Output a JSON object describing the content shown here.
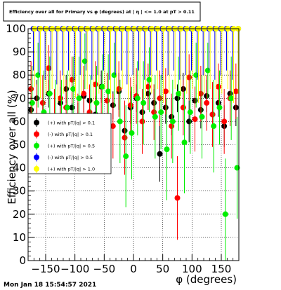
{
  "chart_data": {
    "type": "scatter",
    "title": "Efficiency over all for Primary  vs φ (degrees) at | η | <= 1.0 at pT > 0.11",
    "xlabel": "φ (degrees)",
    "ylabel": "Efficiency over all (%)",
    "xlim": [
      -180,
      180
    ],
    "ylim": [
      0,
      100
    ],
    "x_ticks": [
      -150,
      -100,
      -50,
      0,
      50,
      100,
      150
    ],
    "y_ticks": [
      0,
      10,
      20,
      30,
      40,
      50,
      60,
      70,
      80,
      90,
      100
    ],
    "grid": true,
    "legend_position": "left-middle",
    "timestamp": "Mon Jan 18 15:54:57 2021",
    "series": [
      {
        "name": "(+) with pT/|q| > 0.1",
        "color": "#000000",
        "x": [
          -175,
          -165,
          -155,
          -145,
          -135,
          -125,
          -115,
          -105,
          -95,
          -85,
          -75,
          -65,
          -55,
          -45,
          -35,
          -25,
          -15,
          -5,
          5,
          15,
          25,
          35,
          45,
          55,
          65,
          75,
          85,
          95,
          105,
          115,
          125,
          135,
          145,
          155,
          165,
          175
        ],
        "y": [
          65,
          70,
          62,
          72,
          60,
          68,
          74,
          66,
          58,
          71,
          69,
          63,
          75,
          61,
          67,
          73,
          56,
          66,
          70,
          64,
          72,
          68,
          46,
          66,
          62,
          70,
          74,
          60,
          69,
          65,
          71,
          63,
          68,
          58,
          72,
          66
        ],
        "err": [
          6,
          8,
          7,
          6,
          9,
          7,
          6,
          8,
          10,
          7,
          6,
          8,
          7,
          9,
          6,
          8,
          10,
          7,
          6,
          8,
          7,
          6,
          12,
          7,
          8,
          6,
          7,
          9,
          6,
          8,
          7,
          8,
          6,
          9,
          7,
          8
        ]
      },
      {
        "name": "(-) with pT/|q| > 0.1",
        "color": "#ff0000",
        "x": [
          -175,
          -165,
          -155,
          -145,
          -135,
          -125,
          -115,
          -105,
          -95,
          -85,
          -75,
          -65,
          -55,
          -45,
          -35,
          -25,
          -15,
          -5,
          5,
          15,
          25,
          35,
          45,
          55,
          65,
          75,
          85,
          95,
          105,
          115,
          125,
          135,
          145,
          155,
          165,
          175
        ],
        "y": [
          74,
          62,
          68,
          83,
          60,
          70,
          66,
          78,
          58,
          72,
          64,
          76,
          62,
          69,
          58,
          74,
          53,
          67,
          71,
          60,
          75,
          64,
          70,
          73,
          58,
          27,
          66,
          79,
          61,
          72,
          68,
          63,
          75,
          60,
          70,
          73
        ],
        "err": [
          12,
          14,
          12,
          10,
          14,
          12,
          12,
          10,
          14,
          12,
          12,
          10,
          14,
          12,
          14,
          12,
          16,
          12,
          12,
          14,
          10,
          12,
          12,
          10,
          14,
          18,
          12,
          10,
          14,
          12,
          12,
          14,
          10,
          14,
          12,
          12
        ]
      },
      {
        "name": "(+) with pT/|q| > 0.5",
        "color": "#00ee00",
        "x": [
          -173,
          -163,
          -153,
          -143,
          -133,
          -123,
          -113,
          -103,
          -93,
          -83,
          -73,
          -63,
          -53,
          -43,
          -33,
          -23,
          -13,
          -3,
          7,
          17,
          27,
          37,
          47,
          57,
          67,
          77,
          87,
          97,
          107,
          117,
          127,
          137,
          147,
          157,
          167,
          177
        ],
        "y": [
          68,
          80,
          64,
          72,
          58,
          60,
          66,
          74,
          70,
          86,
          62,
          68,
          75,
          73,
          80,
          60,
          45,
          55,
          70,
          68,
          78,
          62,
          64,
          48,
          60,
          72,
          51,
          64,
          80,
          62,
          82,
          58,
          66,
          20,
          70,
          40
        ],
        "err": [
          16,
          14,
          18,
          16,
          20,
          18,
          16,
          14,
          18,
          12,
          18,
          16,
          14,
          16,
          14,
          18,
          22,
          20,
          16,
          18,
          14,
          18,
          16,
          22,
          18,
          16,
          22,
          18,
          14,
          18,
          12,
          20,
          16,
          24,
          18,
          22
        ]
      },
      {
        "name": "(-) with pT/|q| > 0.5",
        "color": "#0000ff",
        "x": [
          -171,
          -161,
          -151,
          -141,
          -131,
          -121,
          -111,
          -101,
          -91,
          -81,
          -71,
          -61,
          -51,
          -41,
          -31,
          -21,
          -11,
          -1,
          9,
          19,
          29,
          39,
          49,
          59,
          69,
          79,
          89,
          99,
          109,
          119,
          129,
          139,
          149,
          159,
          169,
          179
        ],
        "y": [
          100,
          100,
          100,
          100,
          100,
          100,
          100,
          100,
          100,
          100,
          100,
          100,
          100,
          100,
          100,
          100,
          100,
          100,
          100,
          100,
          100,
          100,
          100,
          100,
          100,
          100,
          100,
          100,
          100,
          100,
          100,
          100,
          100,
          100,
          100,
          100
        ],
        "err": [
          18,
          20,
          22,
          18,
          24,
          20,
          18,
          22,
          20,
          18,
          22,
          20,
          18,
          22,
          20,
          18,
          24,
          20,
          18,
          22,
          20,
          18,
          22,
          20,
          18,
          22,
          20,
          18,
          22,
          20,
          18,
          22,
          20,
          18,
          22,
          20
        ]
      },
      {
        "name": "(+) with pT/|q| > 1.0",
        "color": "#ffff00",
        "x": [
          -169,
          -159,
          -149,
          -139,
          -129,
          -119,
          -109,
          -99,
          -89,
          -79,
          -69,
          -59,
          -49,
          -39,
          -29,
          -19,
          -9,
          1,
          11,
          21,
          31,
          41,
          51,
          61,
          71,
          81,
          91,
          101,
          111,
          121,
          131,
          141,
          151,
          161,
          171,
          179
        ],
        "y": [
          100,
          100,
          100,
          100,
          100,
          100,
          100,
          100,
          100,
          100,
          100,
          100,
          100,
          100,
          100,
          100,
          100,
          100,
          100,
          100,
          100,
          100,
          100,
          100,
          100,
          100,
          100,
          100,
          100,
          100,
          100,
          100,
          100,
          100,
          100,
          100
        ],
        "err": [
          25,
          30,
          28,
          26,
          32,
          28,
          26,
          30,
          28,
          26,
          32,
          28,
          26,
          30,
          28,
          26,
          32,
          28,
          26,
          30,
          28,
          26,
          32,
          28,
          26,
          30,
          28,
          26,
          32,
          28,
          26,
          30,
          28,
          26,
          32,
          28
        ]
      }
    ]
  }
}
